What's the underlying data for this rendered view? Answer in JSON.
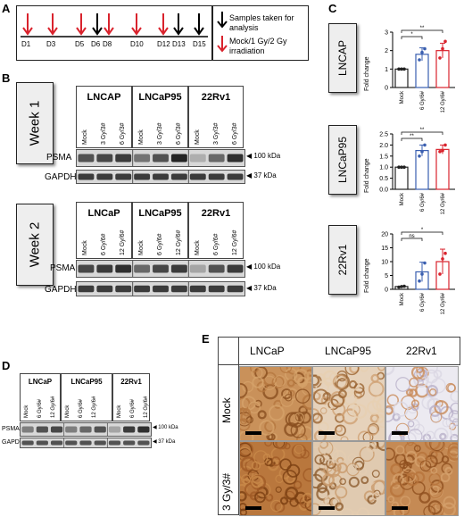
{
  "panels": {
    "A": "A",
    "B": "B",
    "C": "C",
    "D": "D",
    "E": "E"
  },
  "panelA": {
    "days": [
      "D1",
      "D3",
      "D5",
      "D6",
      "D8",
      "D10",
      "D12",
      "D13",
      "D15"
    ],
    "legend_black": "Samples taken for analysis",
    "legend_red": "Mock/1 Gy/2 Gy irradiation",
    "colors": {
      "red": "#d9232d",
      "black": "#000000"
    }
  },
  "panelB": {
    "week1": {
      "title": "Week 1",
      "groups": [
        "LNCAP",
        "LNCaP95",
        "22Rv1"
      ],
      "lanes": [
        "Mock",
        "3 Gy/3#",
        "6 Gy/3#"
      ],
      "bands": [
        "PSMA",
        "GAPDH"
      ],
      "markers": [
        "◀ 100 kDa",
        "◀ 37 kDa"
      ]
    },
    "week2": {
      "title": "Week 2",
      "groups": [
        "LNCaP",
        "LNCaP95",
        "22Rv1"
      ],
      "lanes": [
        "Mock",
        "6 Gy/6#",
        "12 Gy/6#"
      ],
      "bands": [
        "PSMA",
        "GAPDH"
      ],
      "markers": [
        "◀ 100 kDa",
        "◀ 37 kDa"
      ]
    }
  },
  "chart_data": [
    {
      "type": "bar",
      "title": "LNCAP",
      "categories": [
        "Mock",
        "6 Gy/6#",
        "12 Gy/6#"
      ],
      "values": [
        1.0,
        1.8,
        2.0
      ],
      "errors": [
        0.02,
        0.35,
        0.4
      ],
      "points": [
        [
          1.0,
          1.0,
          1.0
        ],
        [
          1.5,
          1.9,
          2.1
        ],
        [
          1.6,
          2.1,
          2.5
        ]
      ],
      "ylabel": "Fold change",
      "ylim": [
        0,
        3
      ],
      "yticks": [
        "0",
        "1",
        "2",
        "3"
      ],
      "significance": [
        "*",
        "**"
      ],
      "colors": [
        "#222222",
        "#3a5fb0",
        "#d9232d"
      ]
    },
    {
      "type": "bar",
      "title": "LNCaP95",
      "categories": [
        "Mock",
        "6 Gy/6#",
        "12 Gy/6#"
      ],
      "values": [
        1.0,
        1.75,
        1.8
      ],
      "errors": [
        0.02,
        0.25,
        0.2
      ],
      "points": [
        [
          1.0,
          1.0,
          1.0
        ],
        [
          1.5,
          1.7,
          2.0
        ],
        [
          1.7,
          1.75,
          2.0
        ]
      ],
      "ylabel": "Fold change",
      "ylim": [
        0,
        2.5
      ],
      "yticks": [
        "0.0",
        "0.5",
        "1.0",
        "1.5",
        "2.0",
        "2.5"
      ],
      "significance": [
        "**",
        "**"
      ],
      "colors": [
        "#222222",
        "#3a5fb0",
        "#d9232d"
      ]
    },
    {
      "type": "bar",
      "title": "22Rv1",
      "categories": [
        "Mock",
        "6 Gy/6#",
        "12 Gy/6#"
      ],
      "values": [
        1.0,
        6.3,
        10.0
      ],
      "errors": [
        0.1,
        3.5,
        4.5
      ],
      "points": [
        [
          0.8,
          1.0,
          1.1
        ],
        [
          3.0,
          5.5,
          9.5
        ],
        [
          5.5,
          11.0,
          13.0
        ]
      ],
      "ylabel": "Fold change",
      "ylim": [
        0,
        20
      ],
      "yticks": [
        "0",
        "5",
        "10",
        "15",
        "20"
      ],
      "significance": [
        "ns",
        "*"
      ],
      "colors": [
        "#222222",
        "#3a5fb0",
        "#d9232d"
      ]
    }
  ],
  "panelD": {
    "groups": [
      "LNCaP",
      "LNCaP95",
      "22Rv1"
    ],
    "lanes": [
      "Mock",
      "6 Gy/6#",
      "12 Gy/6#"
    ],
    "bands": [
      "PSMA",
      "GAPDH"
    ],
    "markers": [
      "◀ 100 kDa",
      "◀ 37 kDa"
    ]
  },
  "panelE": {
    "columns": [
      "LNCaP",
      "LNCaP95",
      "22Rv1"
    ],
    "rows": [
      "Mock",
      "3 Gy/3#"
    ]
  }
}
